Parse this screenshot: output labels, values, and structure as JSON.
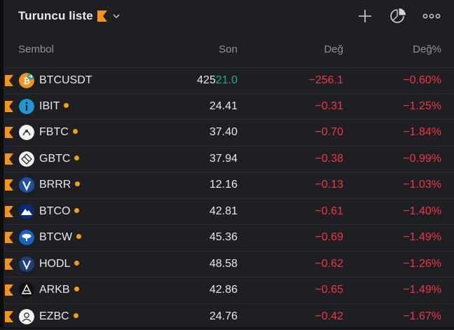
{
  "header": {
    "title": "Turuncu liste",
    "icons": [
      "orange-flag-icon",
      "chevron-down-icon",
      "plus-icon",
      "pie-chart-icon",
      "more-icon"
    ]
  },
  "columns": {
    "symbol": "Sembol",
    "last": "Son",
    "change": "Değ",
    "change_pct": "Değ%"
  },
  "colors": {
    "negative": "#f23645",
    "positive": "#26a69a",
    "flag": "#f7931a",
    "dot": "#f59f0b"
  },
  "rows": [
    {
      "symbol": "BTCUSDT",
      "last_a": "425",
      "last_b": "21.0",
      "change": "−256.1",
      "change_pct": "−0.60%",
      "logo": "bitcoin-logo-icon"
    },
    {
      "symbol": "IBIT",
      "last": "24.41",
      "change": "−0.31",
      "change_pct": "−1.25%",
      "logo": "ishares-logo-icon"
    },
    {
      "symbol": "FBTC",
      "last": "37.40",
      "change": "−0.70",
      "change_pct": "−1.84%",
      "logo": "fidelity-logo-icon"
    },
    {
      "symbol": "GBTC",
      "last": "37.94",
      "change": "−0.38",
      "change_pct": "−0.99%",
      "logo": "grayscale-logo-icon"
    },
    {
      "symbol": "BRRR",
      "last": "12.16",
      "change": "−0.13",
      "change_pct": "−1.03%",
      "logo": "valkyrie-logo-icon"
    },
    {
      "symbol": "BTCO",
      "last": "42.81",
      "change": "−0.61",
      "change_pct": "−1.40%",
      "logo": "invesco-logo-icon"
    },
    {
      "symbol": "BTCW",
      "last": "45.36",
      "change": "−0.69",
      "change_pct": "−1.49%",
      "logo": "wisdomtree-logo-icon"
    },
    {
      "symbol": "HODL",
      "last": "48.58",
      "change": "−0.62",
      "change_pct": "−1.26%",
      "logo": "vaneck-logo-icon"
    },
    {
      "symbol": "ARKB",
      "last": "42.86",
      "change": "−0.65",
      "change_pct": "−1.49%",
      "logo": "ark-logo-icon"
    },
    {
      "symbol": "EZBC",
      "last": "24.76",
      "change": "−0.42",
      "change_pct": "−1.67%",
      "logo": "franklin-logo-icon"
    }
  ]
}
